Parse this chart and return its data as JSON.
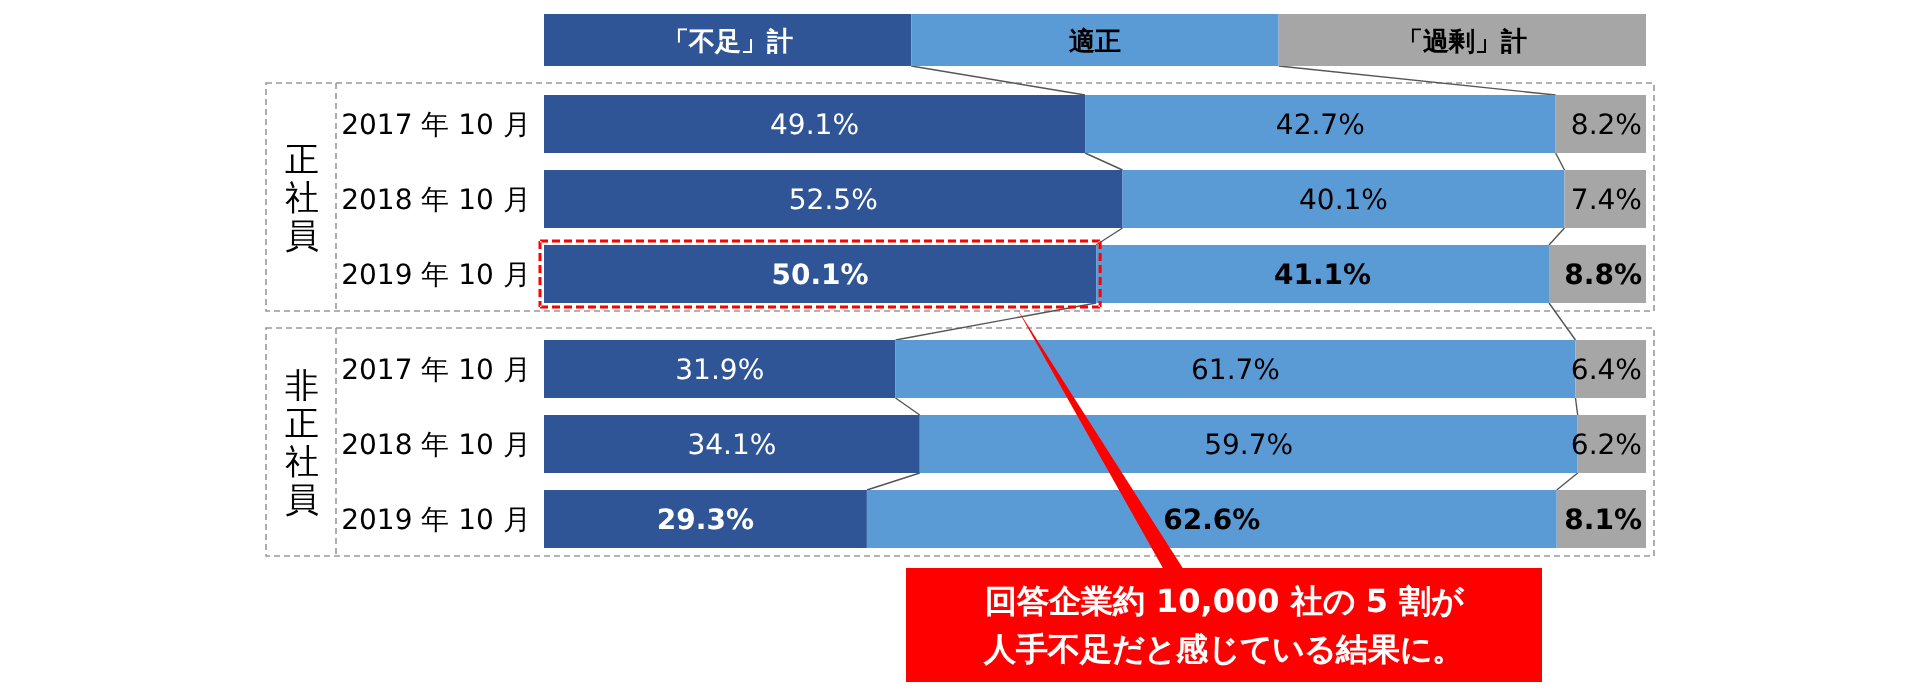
{
  "chart_data": {
    "type": "bar",
    "orientation": "horizontal",
    "stacked": true,
    "legend": "top",
    "tick_labels": "y",
    "categories": [
      "2017 年 10 月",
      "2018 年 10 月",
      "2019 年 10 月",
      "2017 年 10 月",
      "2018 年 10 月",
      "2019 年 10 月"
    ],
    "series": [
      {
        "name": "「不足」計",
        "color": "#2f5597",
        "values": [
          49.1,
          52.5,
          50.1,
          31.9,
          34.1,
          29.3
        ],
        "value_labels": [
          "49.1%",
          "52.5%",
          "50.1%",
          "31.9%",
          "34.1%",
          "29.3%"
        ]
      },
      {
        "name": "適正",
        "color": "#5b9bd5",
        "values": [
          42.7,
          40.1,
          41.1,
          61.7,
          59.7,
          62.6
        ],
        "value_labels": [
          "42.7%",
          "40.1%",
          "41.1%",
          "61.7%",
          "59.7%",
          "62.6%"
        ]
      },
      {
        "name": "「過剰」計",
        "color": "#a6a6a6",
        "values": [
          8.2,
          7.4,
          8.8,
          6.4,
          6.2,
          8.1
        ],
        "value_labels": [
          "8.2%",
          "7.4%",
          "8.8%",
          "6.4%",
          "6.2%",
          "8.1%"
        ]
      }
    ],
    "annotations": [
      "正社員",
      "非正社員",
      "回答企業約 10,000 社の 5 割が人手不足だと感じている結果に。"
    ]
  }
}
